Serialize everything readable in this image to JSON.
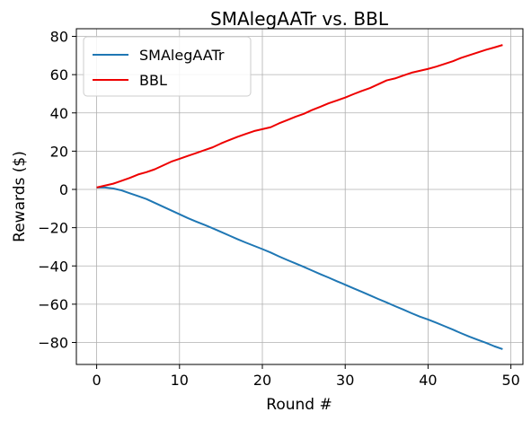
{
  "chart_data": {
    "type": "line",
    "title": "SMAlegAATr vs. BBL",
    "xlabel": "Round #",
    "ylabel": "Rewards ($)",
    "xlim": [
      -2.45,
      51.45
    ],
    "ylim": [
      -91.5,
      84
    ],
    "xticks": [
      0,
      10,
      20,
      30,
      40,
      50
    ],
    "xtick_labels": [
      "0",
      "10",
      "20",
      "30",
      "40",
      "50"
    ],
    "yticks": [
      -80,
      -60,
      -40,
      -20,
      0,
      20,
      40,
      60,
      80
    ],
    "ytick_labels": [
      "−80",
      "−60",
      "−40",
      "−20",
      "0",
      "20",
      "40",
      "60",
      "80"
    ],
    "grid": true,
    "legend_position": "top-left",
    "series": [
      {
        "name": "SMAlegAATr",
        "color": "#1f77b4",
        "x": [
          0,
          1,
          2,
          3,
          4,
          5,
          6,
          7,
          8,
          9,
          10,
          11,
          12,
          13,
          14,
          15,
          16,
          17,
          18,
          19,
          20,
          21,
          22,
          23,
          24,
          25,
          26,
          27,
          28,
          29,
          30,
          31,
          32,
          33,
          34,
          35,
          36,
          37,
          38,
          39,
          40,
          41,
          42,
          43,
          44,
          45,
          46,
          47,
          48,
          49
        ],
        "y": [
          1,
          1,
          0.5,
          -0.5,
          -2,
          -3.5,
          -5,
          -7,
          -9,
          -11,
          -13,
          -15,
          -16.8,
          -18.5,
          -20.3,
          -22.2,
          -24.1,
          -26,
          -27.8,
          -29.5,
          -31.2,
          -33,
          -35,
          -36.9,
          -38.7,
          -40.5,
          -42.4,
          -44.3,
          -46.1,
          -48,
          -49.8,
          -51.7,
          -53.5,
          -55.4,
          -57.3,
          -59.1,
          -61,
          -62.8,
          -64.7,
          -66.5,
          -68,
          -69.7,
          -71.5,
          -73.3,
          -75.2,
          -77,
          -78.6,
          -80.2,
          -82,
          -83.5
        ]
      },
      {
        "name": "BBL",
        "color": "#ee0000",
        "x": [
          0,
          1,
          2,
          3,
          4,
          5,
          6,
          7,
          8,
          9,
          10,
          11,
          12,
          13,
          14,
          15,
          16,
          17,
          18,
          19,
          20,
          21,
          22,
          23,
          24,
          25,
          26,
          27,
          28,
          29,
          30,
          31,
          32,
          33,
          34,
          35,
          36,
          37,
          38,
          39,
          40,
          41,
          42,
          43,
          44,
          45,
          46,
          47,
          48,
          49
        ],
        "y": [
          1,
          2,
          3,
          4.5,
          6,
          7.8,
          9,
          10.5,
          12.5,
          14.5,
          16,
          17.5,
          19,
          20.5,
          22,
          24,
          25.8,
          27.5,
          29,
          30.5,
          31.5,
          32.5,
          34.5,
          36.2,
          38,
          39.5,
          41.5,
          43.2,
          45,
          46.5,
          48,
          49.8,
          51.5,
          53,
          55,
          57,
          58,
          59.5,
          61,
          62,
          63,
          64.2,
          65.6,
          67,
          68.8,
          70.2,
          71.6,
          73,
          74.2,
          75.5
        ]
      }
    ]
  }
}
